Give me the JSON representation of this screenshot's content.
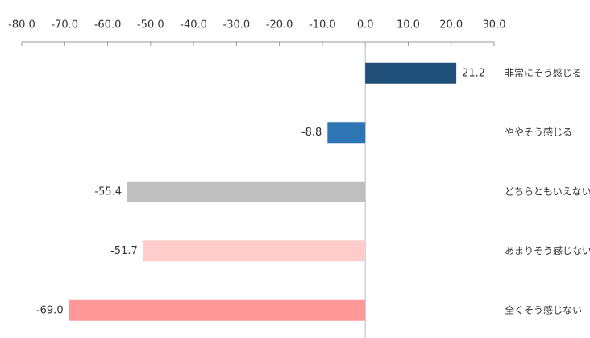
{
  "chart_data": {
    "type": "hbar",
    "categories": [
      "非常にそう感じる",
      "ややそう感じる",
      "どちらともいえない",
      "あまりそう感じない",
      "全くそう感じない"
    ],
    "values": [
      21.2,
      -8.8,
      -55.4,
      -51.7,
      -69.0
    ],
    "value_labels": [
      "21.2",
      "-8.8",
      "-55.4",
      "-51.7",
      "-69.0"
    ],
    "colors": [
      "#1f4e79",
      "#2e75b6",
      "#bfbfbf",
      "#ffcccc",
      "#ff9999"
    ],
    "xlim": [
      -80,
      30
    ],
    "xticks": [
      {
        "value": -80,
        "label": "-80.0"
      },
      {
        "value": -70,
        "label": "-70.0"
      },
      {
        "value": -60,
        "label": "-60.0"
      },
      {
        "value": -50,
        "label": "-50.0"
      },
      {
        "value": -40,
        "label": "-40.0"
      },
      {
        "value": -30,
        "label": "-30.0"
      },
      {
        "value": -20,
        "label": "-20.0"
      },
      {
        "value": -10,
        "label": "-10.0"
      },
      {
        "value": 0,
        "label": "0.0"
      },
      {
        "value": 10,
        "label": "10.0"
      },
      {
        "value": 20,
        "label": "20.0"
      },
      {
        "value": 30,
        "label": "30.0"
      }
    ]
  }
}
